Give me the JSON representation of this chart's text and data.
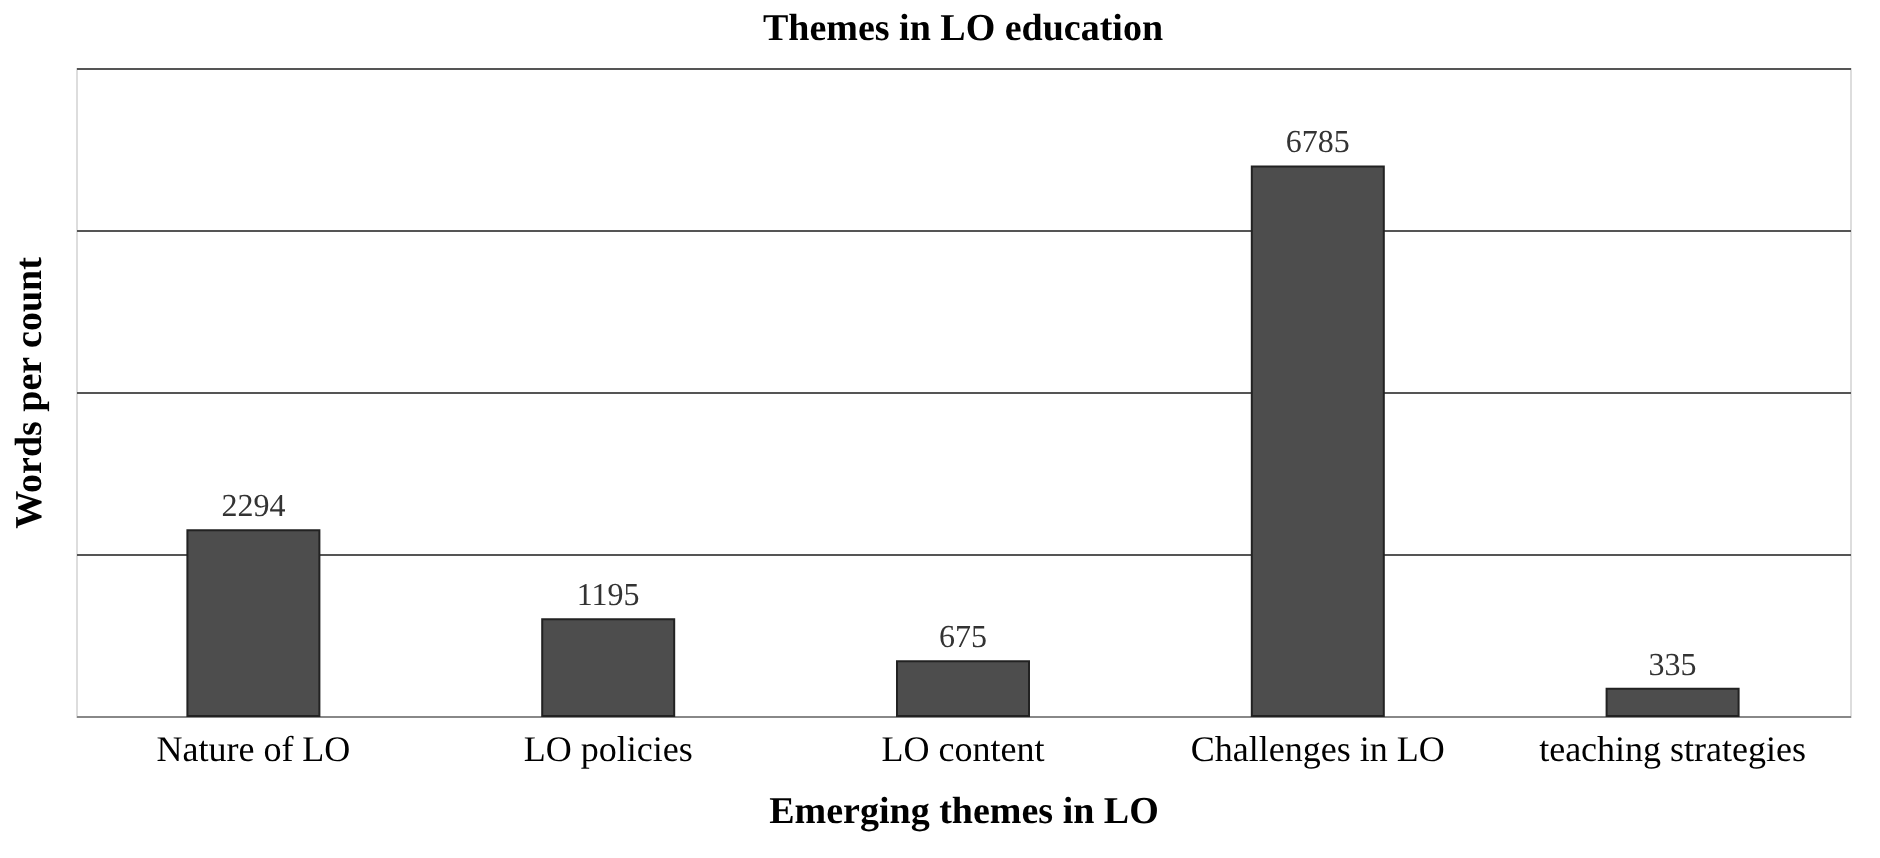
{
  "chart_data": {
    "type": "bar",
    "title": "Themes in LO education",
    "xlabel": "Emerging themes in LO",
    "ylabel": "Words per count",
    "categories": [
      "Nature of LO",
      "LO policies",
      "LO content",
      "Challenges in LO",
      "teaching strategies"
    ],
    "values": [
      2294,
      1195,
      675,
      6785,
      335
    ],
    "color": "#4d4d4d",
    "data_labels": true,
    "ylim": [
      0,
      8000
    ],
    "yticks": [
      {
        "value": 0,
        "label": null
      },
      {
        "value": 2000,
        "label": null
      },
      {
        "value": 4000,
        "label": null
      },
      {
        "value": 6000,
        "label": null
      },
      {
        "value": 8000,
        "label": null
      }
    ],
    "tick_labels": "x",
    "grid": "y"
  }
}
